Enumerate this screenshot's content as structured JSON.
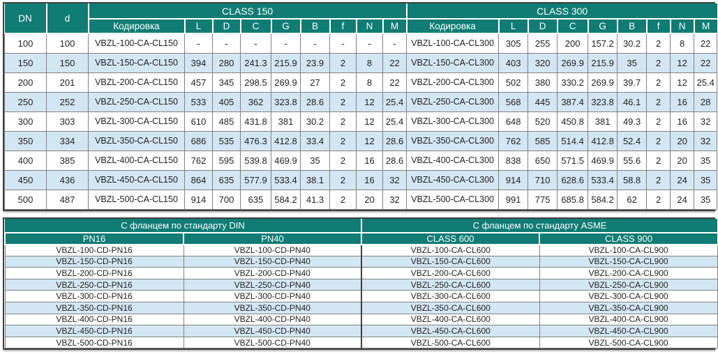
{
  "colors": {
    "header_teal": "#107c74",
    "row_stripe_blue": "#d3e6f3",
    "row_white": "#ffffff",
    "grid_border": "#808080",
    "outer_border": "#404040",
    "header_text": "#ffffff",
    "body_text": "#1f1f1f"
  },
  "top_table": {
    "dn_header": "DN",
    "d_header": "d",
    "sections": [
      {
        "title": "CLASS 150",
        "code_header": "Кодировка",
        "dim_headers": [
          "L",
          "D",
          "C",
          "G",
          "B",
          "f",
          "N",
          "M"
        ]
      },
      {
        "title": "CLASS 300",
        "code_header": "Кодировка",
        "dim_headers": [
          "L",
          "D",
          "C",
          "G",
          "B",
          "f",
          "N",
          "M"
        ]
      }
    ],
    "rows": [
      {
        "dn": "100",
        "d": "100",
        "cl150": {
          "code": "VBZL-100-CA-CL150",
          "dims": [
            "-",
            "-",
            "-",
            "-",
            "-",
            "-",
            "-",
            "-"
          ]
        },
        "cl300": {
          "code": "VBZL-100-CA-CL300",
          "dims": [
            "305",
            "255",
            "200",
            "157.2",
            "30.2",
            "2",
            "8",
            "22"
          ]
        }
      },
      {
        "dn": "150",
        "d": "150",
        "cl150": {
          "code": "VBZL-150-CA-CL150",
          "dims": [
            "394",
            "280",
            "241.3",
            "215.9",
            "23.9",
            "2",
            "8",
            "22"
          ]
        },
        "cl300": {
          "code": "VBZL-150-CA-CL300",
          "dims": [
            "403",
            "320",
            "269.9",
            "215.9",
            "35",
            "2",
            "12",
            "22"
          ]
        }
      },
      {
        "dn": "200",
        "d": "201",
        "cl150": {
          "code": "VBZL-200-CA-CL150",
          "dims": [
            "457",
            "345",
            "298.5",
            "269.9",
            "27",
            "2",
            "8",
            "22"
          ]
        },
        "cl300": {
          "code": "VBZL-200-CA-CL300",
          "dims": [
            "502",
            "380",
            "330.2",
            "269.9",
            "39.7",
            "2",
            "12",
            "25.4"
          ]
        }
      },
      {
        "dn": "250",
        "d": "252",
        "cl150": {
          "code": "VBZL-250-CA-CL150",
          "dims": [
            "533",
            "405",
            "362",
            "323.8",
            "28.6",
            "2",
            "12",
            "25.4"
          ]
        },
        "cl300": {
          "code": "VBZL-250-CA-CL300",
          "dims": [
            "568",
            "445",
            "387.4",
            "323.8",
            "46.1",
            "2",
            "16",
            "28"
          ]
        }
      },
      {
        "dn": "300",
        "d": "303",
        "cl150": {
          "code": "VBZL-300-CA-CL150",
          "dims": [
            "610",
            "485",
            "431.8",
            "381",
            "30.2",
            "2",
            "12",
            "25.4"
          ]
        },
        "cl300": {
          "code": "VBZL-300-CA-CL300",
          "dims": [
            "648",
            "520",
            "450.8",
            "381",
            "49.3",
            "2",
            "16",
            "32"
          ]
        }
      },
      {
        "dn": "350",
        "d": "334",
        "cl150": {
          "code": "VBZL-350-CA-CL150",
          "dims": [
            "686",
            "535",
            "476.3",
            "412.8",
            "33.4",
            "2",
            "12",
            "28.6"
          ]
        },
        "cl300": {
          "code": "VBZL-350-CA-CL300",
          "dims": [
            "762",
            "585",
            "514.4",
            "412.8",
            "52.4",
            "2",
            "20",
            "32"
          ]
        }
      },
      {
        "dn": "400",
        "d": "385",
        "cl150": {
          "code": "VBZL-400-CA-CL150",
          "dims": [
            "762",
            "595",
            "539.8",
            "469.9",
            "35",
            "2",
            "16",
            "28.6"
          ]
        },
        "cl300": {
          "code": "VBZL-400-CA-CL300",
          "dims": [
            "838",
            "650",
            "571.5",
            "469.9",
            "55.6",
            "2",
            "20",
            "35"
          ]
        }
      },
      {
        "dn": "450",
        "d": "436",
        "cl150": {
          "code": "VBZL-450-CA-CL150",
          "dims": [
            "864",
            "635",
            "577.9",
            "533.4",
            "38.1",
            "2",
            "16",
            "32"
          ]
        },
        "cl300": {
          "code": "VBZL-450-CA-CL300",
          "dims": [
            "914",
            "710",
            "628.6",
            "533.4",
            "58.8",
            "2",
            "24",
            "35"
          ]
        }
      },
      {
        "dn": "500",
        "d": "487",
        "cl150": {
          "code": "VBZL-500-CA-CL150",
          "dims": [
            "914",
            "700",
            "635",
            "584.2",
            "41.3",
            "2",
            "20",
            "32"
          ]
        },
        "cl300": {
          "code": "VBZL-500-CA-CL300",
          "dims": [
            "991",
            "775",
            "685.8",
            "584.2",
            "62",
            "2",
            "24",
            "35"
          ]
        }
      }
    ]
  },
  "bottom_table": {
    "sections": [
      {
        "title": "С фланцем по стандарту DIN",
        "columns": [
          "PN16",
          "PN40"
        ]
      },
      {
        "title": "С фланцем по стандарту ASME",
        "columns": [
          "CLASS 600",
          "CLASS 900"
        ]
      }
    ],
    "rows": [
      [
        "VBZL-100-CD-PN16",
        "VBZL-100-CD-PN40",
        "VBZL-100-CA-CL600",
        "VBZL-100-CA-CL900"
      ],
      [
        "VBZL-150-CD-PN16",
        "VBZL-150-CD-PN40",
        "VBZL-150-CA-CL600",
        "VBZL-150-CA-CL900"
      ],
      [
        "VBZL-200-CD-PN16",
        "VBZL-200-CD-PN40",
        "VBZL-200-CA-CL600",
        "VBZL-200-CA-CL900"
      ],
      [
        "VBZL-250-CD-PN16",
        "VBZL-250-CD-PN40",
        "VBZL-250-CA-CL600",
        "VBZL-250-CA-CL900"
      ],
      [
        "VBZL-300-CD-PN16",
        "VBZL-300-CD-PN40",
        "VBZL-300-CA-CL600",
        "VBZL-300-CA-CL900"
      ],
      [
        "VBZL-350-CD-PN16",
        "VBZL-350-CD-PN40",
        "VBZL-350-CA-CL600",
        "VBZL-350-CA-CL900"
      ],
      [
        "VBZL-400-CD-PN16",
        "VBZL-400-CD-PN40",
        "VBZL-400-CA-CL600",
        "VBZL-400-CA-CL900"
      ],
      [
        "VBZL-450-CD-PN16",
        "VBZL-450-CD-PN40",
        "VBZL-450-CA-CL600",
        "VBZL-450-CA-CL900"
      ],
      [
        "VBZL-500-CD-PN16",
        "VBZL-500-CD-PN40",
        "VBZL-500-CA-CL600",
        "VBZL-500-CA-CL900"
      ]
    ]
  }
}
